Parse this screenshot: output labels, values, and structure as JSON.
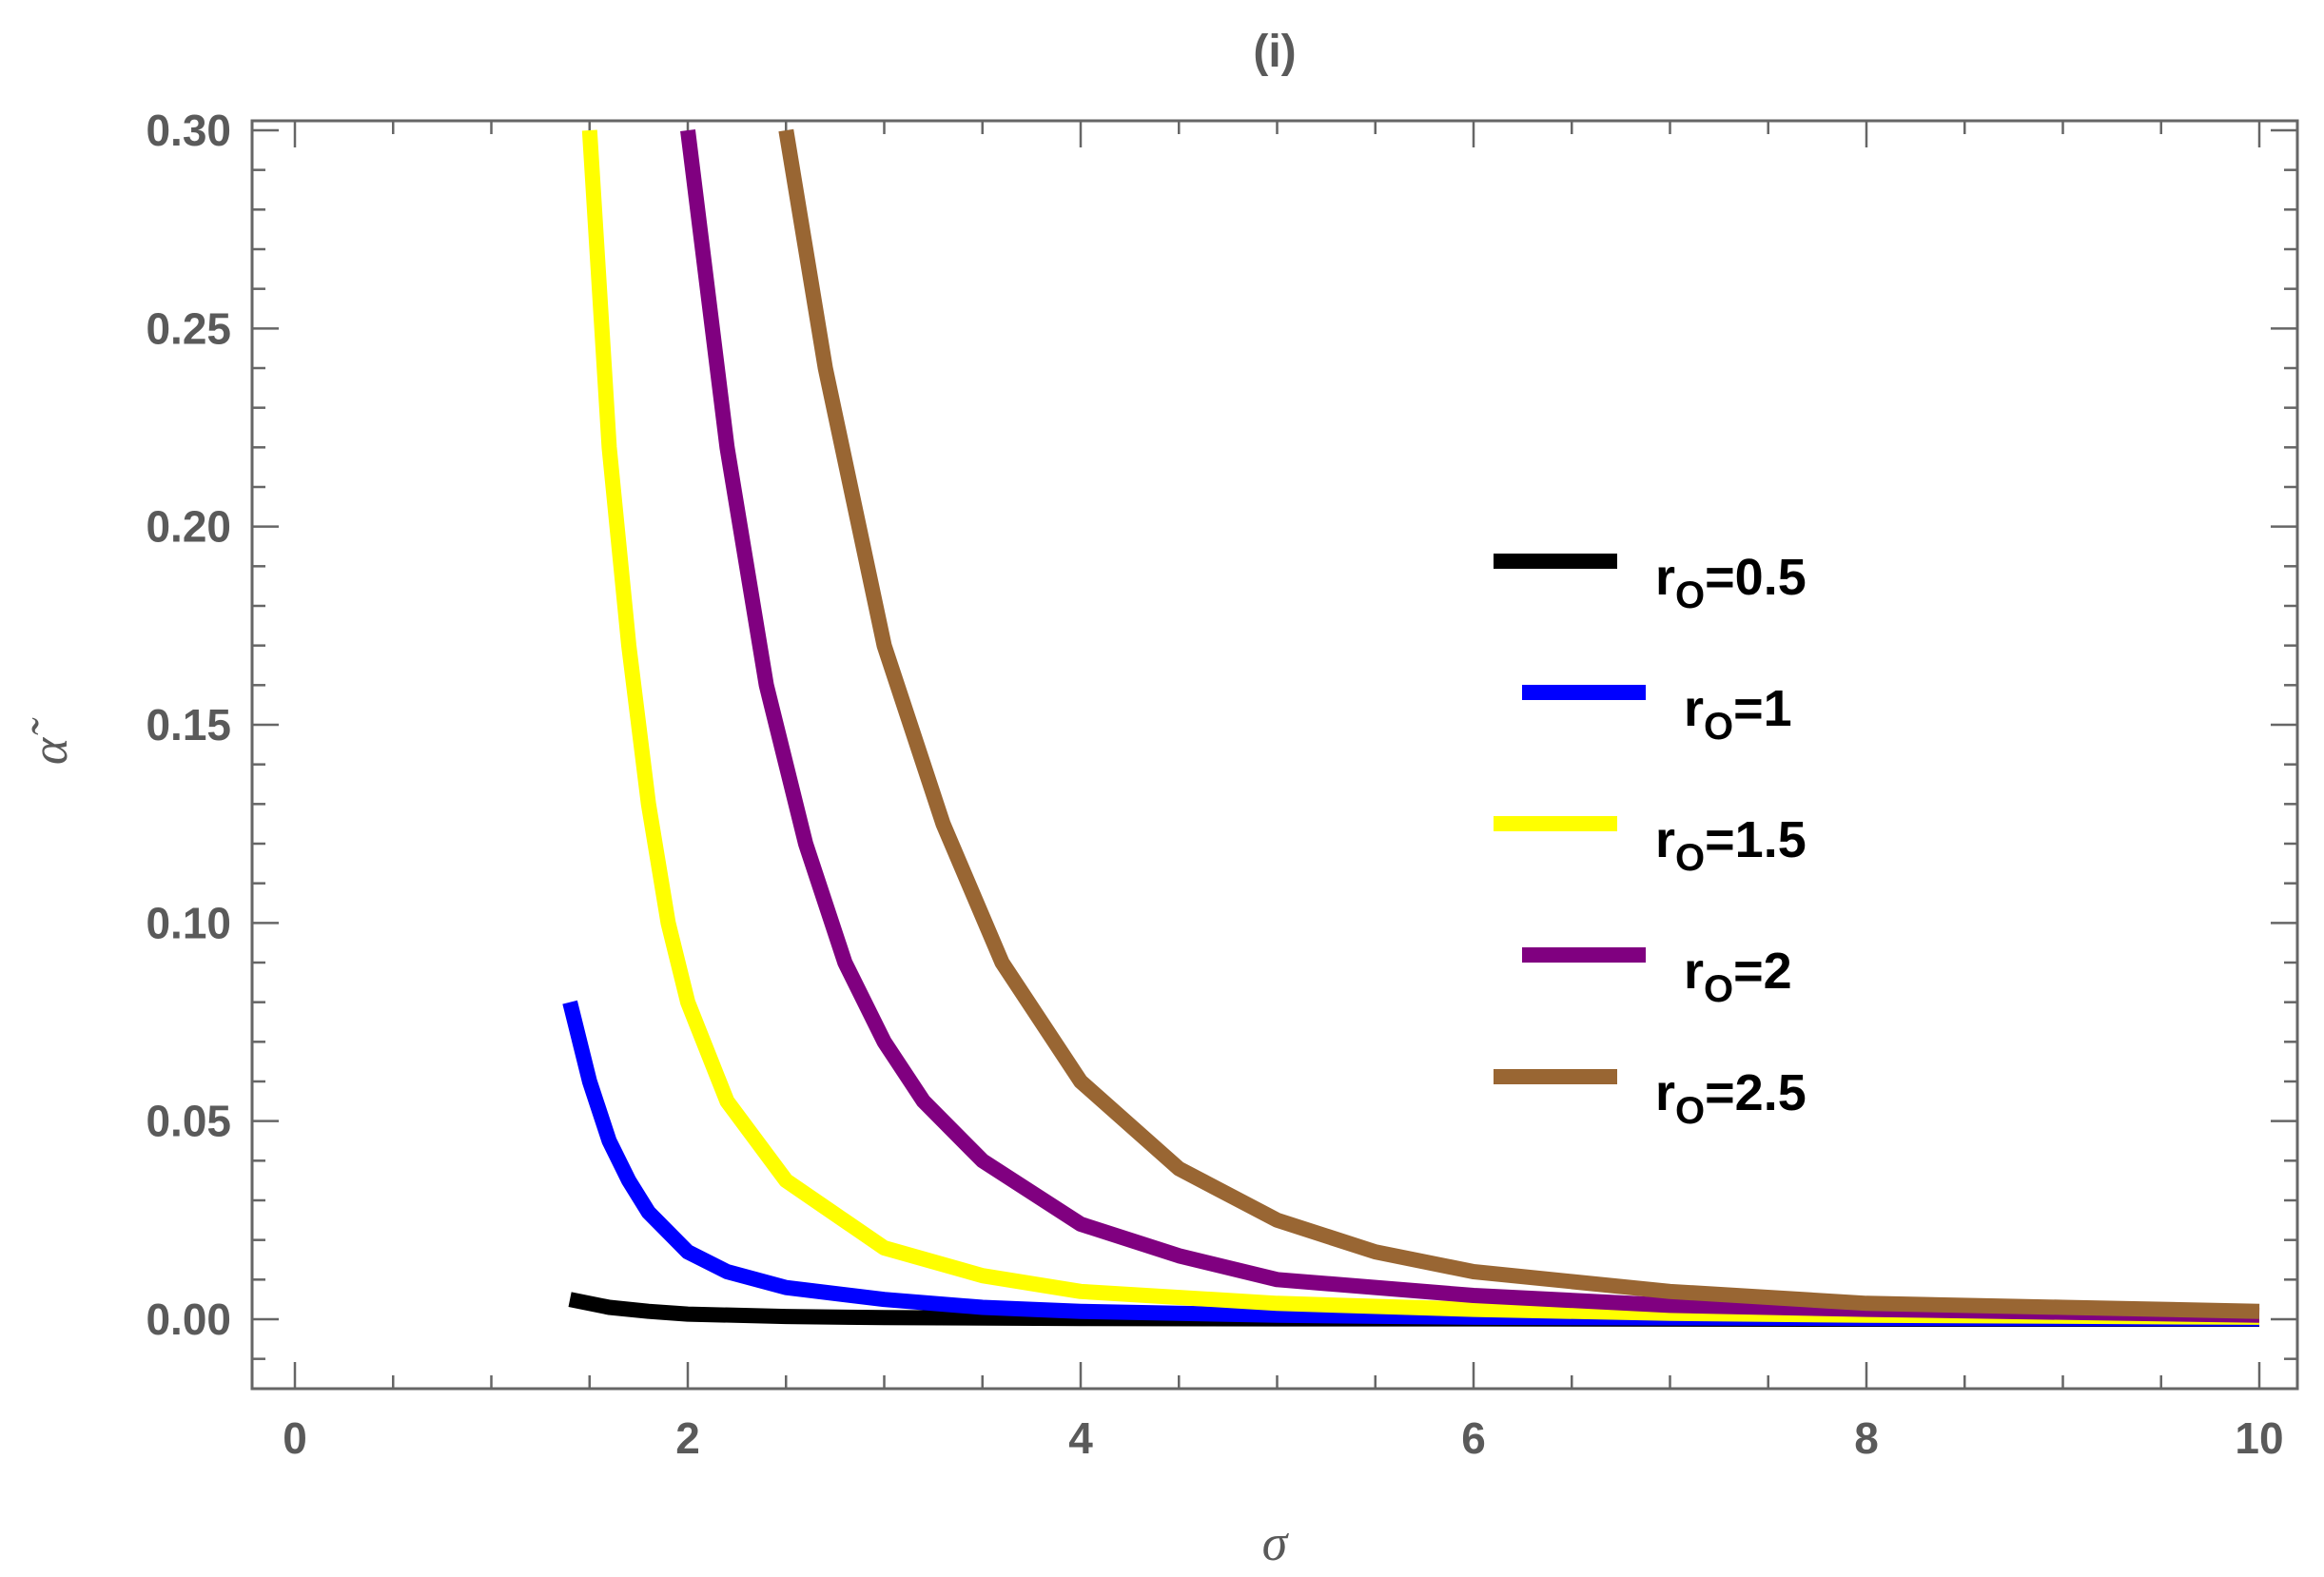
{
  "chart_data": {
    "type": "line",
    "title": "(i)",
    "xlabel": "σ",
    "ylabel": "α̃",
    "xlim": [
      0,
      10
    ],
    "ylim": [
      0,
      0.3
    ],
    "x_ticks": [
      "0",
      "2",
      "4",
      "6",
      "8",
      "10"
    ],
    "y_ticks": [
      "0.00",
      "0.05",
      "0.10",
      "0.15",
      "0.20",
      "0.25",
      "0.30"
    ],
    "grid": false,
    "legend_position": "center-right",
    "series": [
      {
        "name": "rO=0.5",
        "label_base": "r",
        "label_sub": "O",
        "label_value": "=0.5",
        "color": "#000000",
        "points": [
          [
            1.4,
            0.005
          ],
          [
            1.6,
            0.003
          ],
          [
            1.8,
            0.002
          ],
          [
            2.0,
            0.0013
          ],
          [
            2.5,
            0.0007
          ],
          [
            3.0,
            0.0004
          ],
          [
            4.0,
            0.0002
          ],
          [
            5.0,
            0.0001
          ],
          [
            6.0,
            0.0001
          ],
          [
            8.0,
            0.0
          ],
          [
            10.0,
            0.0
          ]
        ]
      },
      {
        "name": "rO=1",
        "label_base": "r",
        "label_sub": "O",
        "label_value": "=1",
        "color": "#0000ff",
        "points": [
          [
            1.4,
            0.08
          ],
          [
            1.5,
            0.06
          ],
          [
            1.6,
            0.045
          ],
          [
            1.7,
            0.035
          ],
          [
            1.8,
            0.027
          ],
          [
            2.0,
            0.017
          ],
          [
            2.2,
            0.012
          ],
          [
            2.5,
            0.008
          ],
          [
            3.0,
            0.005
          ],
          [
            3.5,
            0.003
          ],
          [
            4.0,
            0.002
          ],
          [
            5.0,
            0.001
          ],
          [
            6.0,
            0.0005
          ],
          [
            8.0,
            0.0002
          ],
          [
            10.0,
            0.0001
          ]
        ]
      },
      {
        "name": "rO=1.5",
        "label_base": "r",
        "label_sub": "O",
        "label_value": "=1.5",
        "color": "#ffff00",
        "points": [
          [
            1.5,
            0.3
          ],
          [
            1.6,
            0.22
          ],
          [
            1.7,
            0.17
          ],
          [
            1.8,
            0.13
          ],
          [
            1.9,
            0.1
          ],
          [
            2.0,
            0.08
          ],
          [
            2.2,
            0.055
          ],
          [
            2.5,
            0.035
          ],
          [
            3.0,
            0.018
          ],
          [
            3.5,
            0.011
          ],
          [
            4.0,
            0.007
          ],
          [
            5.0,
            0.004
          ],
          [
            6.0,
            0.0025
          ],
          [
            7.0,
            0.0015
          ],
          [
            8.0,
            0.001
          ],
          [
            10.0,
            0.0005
          ]
        ]
      },
      {
        "name": "rO=2",
        "label_base": "r",
        "label_sub": "O",
        "label_value": "=2",
        "color": "#800080",
        "points": [
          [
            2.0,
            0.3
          ],
          [
            2.2,
            0.22
          ],
          [
            2.4,
            0.16
          ],
          [
            2.6,
            0.12
          ],
          [
            2.8,
            0.09
          ],
          [
            3.0,
            0.07
          ],
          [
            3.2,
            0.055
          ],
          [
            3.5,
            0.04
          ],
          [
            4.0,
            0.024
          ],
          [
            4.5,
            0.016
          ],
          [
            5.0,
            0.01
          ],
          [
            6.0,
            0.006
          ],
          [
            7.0,
            0.0035
          ],
          [
            8.0,
            0.0025
          ],
          [
            10.0,
            0.001
          ]
        ]
      },
      {
        "name": "rO=2.5",
        "label_base": "r",
        "label_sub": "O",
        "label_value": "=2.5",
        "color": "#996633",
        "points": [
          [
            2.5,
            0.3
          ],
          [
            2.7,
            0.24
          ],
          [
            3.0,
            0.17
          ],
          [
            3.3,
            0.125
          ],
          [
            3.6,
            0.09
          ],
          [
            4.0,
            0.06
          ],
          [
            4.5,
            0.038
          ],
          [
            5.0,
            0.025
          ],
          [
            5.5,
            0.017
          ],
          [
            6.0,
            0.012
          ],
          [
            7.0,
            0.007
          ],
          [
            8.0,
            0.004
          ],
          [
            9.0,
            0.003
          ],
          [
            10.0,
            0.002
          ]
        ]
      }
    ]
  }
}
